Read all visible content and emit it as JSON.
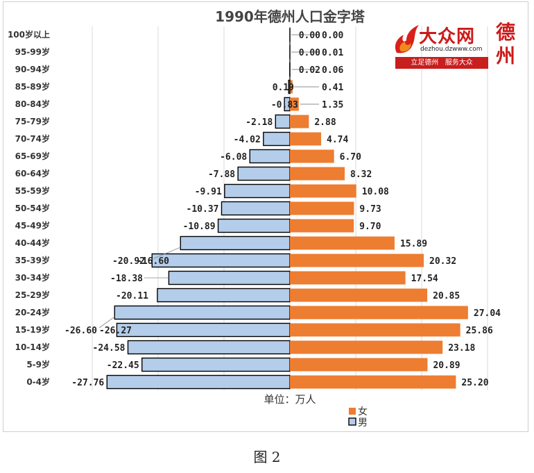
{
  "figure_caption": "图 2",
  "logo": {
    "brand": "大众网",
    "url": "dezhou.dzwww.com",
    "slogan": "立足德州   服务大众",
    "city": "德州"
  },
  "colors": {
    "male": "#b4cdea",
    "female": "#ed7d31",
    "outline": "#000000"
  },
  "chart_data": {
    "type": "bar",
    "orientation": "horizontal",
    "title": "1990年德州人口金字塔",
    "xlabel": "单位：万人",
    "categories": [
      "0-4岁",
      "5-9岁",
      "10-14岁",
      "15-19岁",
      "20-24岁",
      "25-29岁",
      "30-34岁",
      "35-39岁",
      "40-44岁",
      "45-49岁",
      "50-54岁",
      "55-59岁",
      "60-64岁",
      "65-69岁",
      "70-74岁",
      "75-79岁",
      "80-84岁",
      "85-89岁",
      "90-94岁",
      "95-99岁",
      "100岁以上"
    ],
    "series": [
      {
        "name": "女",
        "values": [
          25.2,
          20.89,
          23.18,
          25.86,
          27.04,
          20.85,
          17.54,
          20.32,
          15.89,
          9.7,
          9.73,
          10.08,
          8.32,
          6.7,
          4.74,
          2.88,
          1.35,
          0.41,
          0.06,
          0.01,
          0.0
        ]
      },
      {
        "name": "男",
        "values": [
          -27.76,
          -22.45,
          -24.58,
          -26.27,
          -26.6,
          -20.11,
          -18.38,
          -20.92,
          -16.6,
          -10.89,
          -10.37,
          -9.91,
          -7.88,
          -6.08,
          -4.02,
          -2.18,
          -0.83,
          -0.19,
          -0.02,
          0.0,
          0.0
        ]
      }
    ],
    "male_labels": [
      "-27.76",
      "-22.45",
      "-24.58",
      "-26.27",
      "-26.60",
      "-20.11",
      "-18.38",
      "-20.92",
      "-16.60",
      "-10.89",
      "-10.37",
      "-9.91",
      "-7.88",
      "-6.08",
      "-4.02",
      "-2.18",
      "-0.83",
      "0.19",
      "0.02",
      "0.00",
      "0.00"
    ],
    "female_labels": [
      "25.20",
      "20.89",
      "23.18",
      "25.86",
      "27.04",
      "20.85",
      "17.54",
      "20.32",
      "15.89",
      "9.70",
      "9.73",
      "10.08",
      "8.32",
      "6.70",
      "4.74",
      "2.88",
      "1.35",
      "0.41",
      "0.06",
      "0.01",
      "0.00"
    ],
    "xlim": [
      -28,
      28
    ],
    "gridlines": true,
    "legend_position": "bottom"
  }
}
